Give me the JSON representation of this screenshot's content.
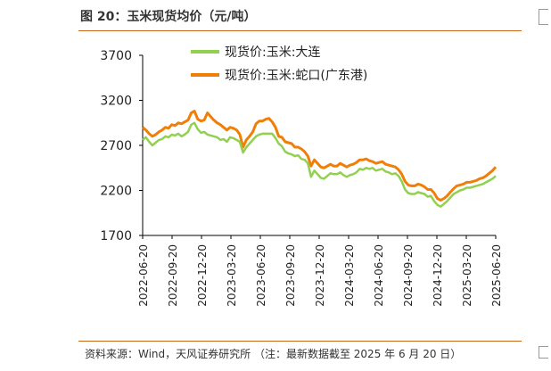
{
  "header": {
    "title": "图 20：玉米现货均价（元/吨）"
  },
  "footer": {
    "source": "资料来源：Wind，天风证券研究所    （注：最新数据截至 2025 年 6 月 20 日）"
  },
  "colors": {
    "dalian": "#92d050",
    "shekou": "#f07f09",
    "accent": "#c8691d"
  },
  "chart_data": {
    "type": "line",
    "title": "",
    "xlabel": "",
    "ylabel": "",
    "ylim": [
      1700,
      3700
    ],
    "yticks": [
      1700,
      2200,
      2700,
      3200,
      3700
    ],
    "xticks": [
      "2022-06-20",
      "2022-09-20",
      "2022-12-20",
      "2023-03-20",
      "2023-06-20",
      "2023-09-20",
      "2023-12-20",
      "2024-03-20",
      "2024-06-20",
      "2024-09-20",
      "2024-12-20",
      "2025-03-20",
      "2025-06-20"
    ],
    "grid": false,
    "legend_position": "top",
    "series": [
      {
        "name": "现货价:玉米:大连",
        "color": "#92d050",
        "values": [
          2760,
          2790,
          2740,
          2700,
          2730,
          2760,
          2770,
          2800,
          2790,
          2820,
          2810,
          2830,
          2800,
          2820,
          2850,
          2930,
          2950,
          2880,
          2840,
          2850,
          2820,
          2810,
          2800,
          2790,
          2760,
          2770,
          2740,
          2790,
          2780,
          2760,
          2740,
          2620,
          2680,
          2720,
          2760,
          2800,
          2820,
          2830,
          2830,
          2830,
          2830,
          2780,
          2720,
          2690,
          2630,
          2610,
          2600,
          2580,
          2590,
          2550,
          2540,
          2500,
          2350,
          2420,
          2380,
          2340,
          2330,
          2360,
          2390,
          2380,
          2380,
          2400,
          2370,
          2350,
          2370,
          2380,
          2400,
          2440,
          2430,
          2450,
          2440,
          2450,
          2420,
          2430,
          2440,
          2410,
          2400,
          2380,
          2390,
          2360,
          2300,
          2210,
          2170,
          2160,
          2160,
          2180,
          2170,
          2160,
          2130,
          2140,
          2080,
          2040,
          2020,
          2050,
          2080,
          2120,
          2160,
          2180,
          2200,
          2210,
          2230,
          2230,
          2240,
          2250,
          2260,
          2270,
          2290,
          2310,
          2330,
          2360
        ]
      },
      {
        "name": "现货价:玉米:蛇口(广东港)",
        "color": "#f07f09",
        "values": [
          2900,
          2870,
          2830,
          2800,
          2820,
          2850,
          2870,
          2900,
          2890,
          2930,
          2920,
          2950,
          2940,
          2960,
          2980,
          3060,
          3080,
          2990,
          2970,
          2980,
          3060,
          3020,
          2980,
          2950,
          2930,
          2900,
          2870,
          2900,
          2890,
          2870,
          2820,
          2680,
          2760,
          2800,
          2850,
          2940,
          2970,
          2970,
          2990,
          3000,
          2960,
          2900,
          2800,
          2790,
          2740,
          2730,
          2720,
          2680,
          2680,
          2660,
          2630,
          2580,
          2470,
          2540,
          2500,
          2460,
          2450,
          2470,
          2490,
          2470,
          2470,
          2500,
          2480,
          2460,
          2480,
          2490,
          2510,
          2540,
          2540,
          2550,
          2530,
          2520,
          2500,
          2510,
          2520,
          2490,
          2480,
          2470,
          2460,
          2430,
          2380,
          2300,
          2260,
          2250,
          2250,
          2270,
          2260,
          2240,
          2210,
          2210,
          2170,
          2110,
          2090,
          2110,
          2140,
          2180,
          2220,
          2250,
          2260,
          2270,
          2290,
          2290,
          2300,
          2310,
          2330,
          2340,
          2360,
          2390,
          2420,
          2460
        ]
      }
    ]
  }
}
